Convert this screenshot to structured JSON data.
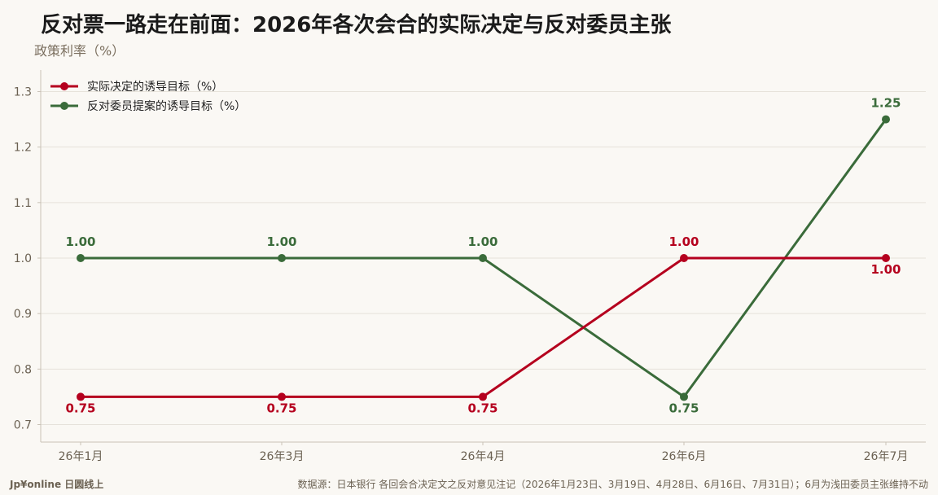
{
  "title": "反对票一路走在前面：2026年各次会合的实际决定与反对委员主张",
  "ylabel": "政策利率（%）",
  "footer": {
    "brand": "Jp¥online 日圆线上",
    "source": "数据源：日本银行 各回会合决定文之反对意见注记（2026年1月23日、3月19日、4月28日、6月16日、7月31日）；6月为浅田委员主张维持不动"
  },
  "colors": {
    "actual": "#b5001e",
    "dissent": "#3a6b3a",
    "grid": "#e6e2da",
    "axis": "#c9c2b6",
    "background": "#faf8f4"
  },
  "chart_data": {
    "type": "line",
    "categories": [
      "26年1月",
      "26年3月",
      "26年4月",
      "26年6月",
      "26年7月"
    ],
    "series": [
      {
        "key": "actual",
        "name": "实际决定的诱导目标（%）",
        "values": [
          0.75,
          0.75,
          0.75,
          1.0,
          1.0
        ],
        "labels": [
          "0.75",
          "0.75",
          "0.75",
          "1.00",
          "1.00"
        ],
        "label_pos": [
          "below",
          "below",
          "below",
          "above",
          "below"
        ]
      },
      {
        "key": "dissent",
        "name": "反对委员提案的诱导目标（%）",
        "values": [
          1.0,
          1.0,
          1.0,
          0.75,
          1.25
        ],
        "labels": [
          "1.00",
          "1.00",
          "1.00",
          "0.75",
          "1.25"
        ],
        "label_pos": [
          "above",
          "above",
          "above",
          "below",
          "above"
        ]
      }
    ],
    "yticks": [
      "0.7",
      "0.8",
      "0.9",
      "1.0",
      "1.1",
      "1.2",
      "1.3"
    ],
    "ylim": [
      0.7,
      1.3
    ],
    "grid": "horizontal",
    "legend": "top-left"
  }
}
